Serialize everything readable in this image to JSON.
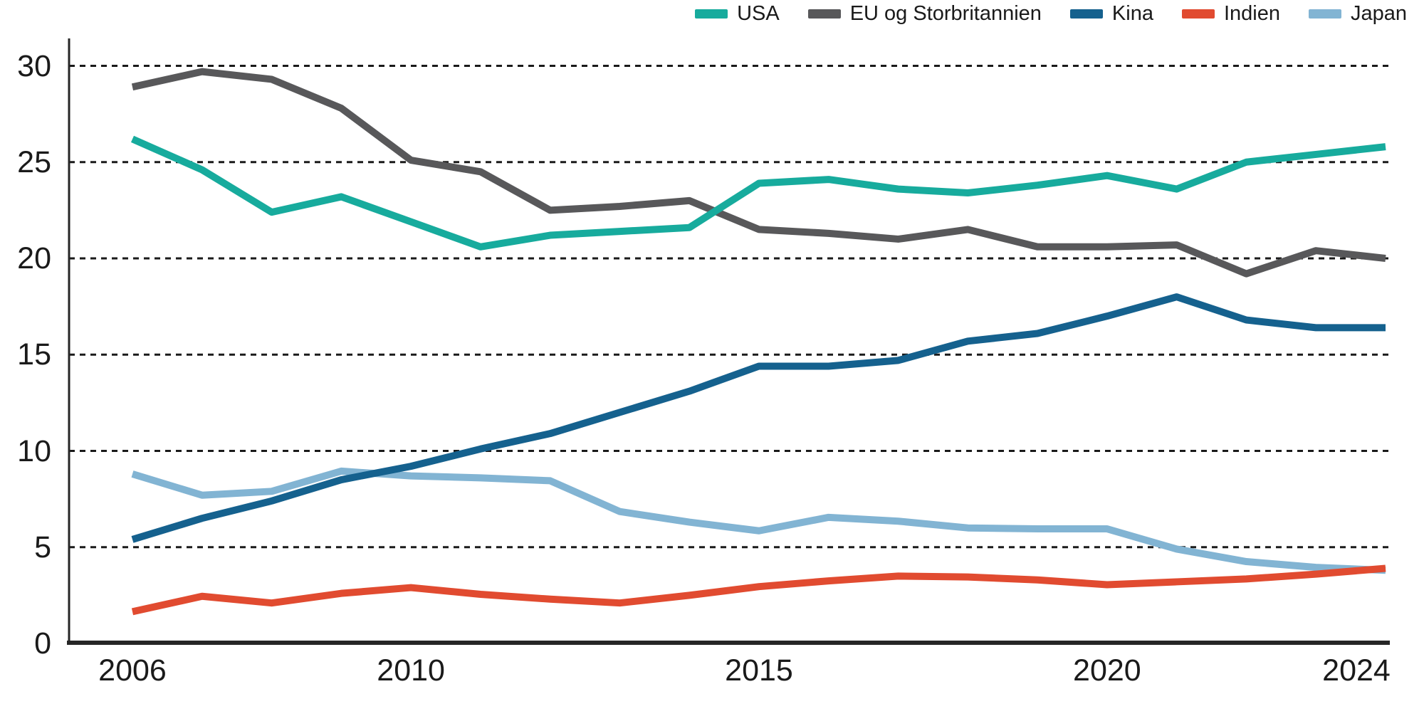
{
  "chart_data": {
    "type": "line",
    "x": [
      2006,
      2007,
      2008,
      2009,
      2010,
      2011,
      2012,
      2013,
      2014,
      2015,
      2016,
      2017,
      2018,
      2019,
      2020,
      2021,
      2022,
      2023,
      2024
    ],
    "x_tick_labels": [
      2006,
      2010,
      2015,
      2020,
      2024
    ],
    "y_ticks": [
      0,
      5,
      10,
      15,
      20,
      25,
      30
    ],
    "ylim": [
      0,
      30
    ],
    "grid": "horizontal-dashed",
    "legend_position": "top-right",
    "series": [
      {
        "name": "USA",
        "color": "#17ab9d",
        "values": [
          26.2,
          24.6,
          22.4,
          23.2,
          21.9,
          20.6,
          21.2,
          21.4,
          21.6,
          23.9,
          24.1,
          23.6,
          23.4,
          23.8,
          24.3,
          23.6,
          25.0,
          25.4,
          25.8
        ]
      },
      {
        "name": "EU og Storbritannien",
        "color": "#58585a",
        "values": [
          28.9,
          29.7,
          29.3,
          27.8,
          25.1,
          24.5,
          22.5,
          22.7,
          23.0,
          21.5,
          21.3,
          21.0,
          21.5,
          20.6,
          20.6,
          20.7,
          19.2,
          20.4,
          20.0
        ]
      },
      {
        "name": "Kina",
        "color": "#15618e",
        "values": [
          5.4,
          6.5,
          7.4,
          8.5,
          9.2,
          10.1,
          10.9,
          12.0,
          13.1,
          14.4,
          14.4,
          14.7,
          15.7,
          16.1,
          17.0,
          18.0,
          16.8,
          16.4,
          16.4
        ]
      },
      {
        "name": "Indien",
        "color": "#e14b30",
        "values": [
          1.65,
          2.45,
          2.1,
          2.6,
          2.9,
          2.55,
          2.3,
          2.1,
          2.5,
          2.95,
          3.25,
          3.5,
          3.45,
          3.3,
          3.05,
          3.2,
          3.35,
          3.6,
          3.9
        ]
      },
      {
        "name": "Japan",
        "color": "#82b4d3",
        "values": [
          8.8,
          7.7,
          7.9,
          8.95,
          8.7,
          8.6,
          8.45,
          6.85,
          6.3,
          5.85,
          6.55,
          6.35,
          6.0,
          5.95,
          5.95,
          4.9,
          4.25,
          3.95,
          3.8
        ]
      }
    ],
    "draw_order": [
      "Japan",
      "EU og Storbritannien",
      "Kina",
      "Indien",
      "USA"
    ]
  },
  "style": {
    "axis_color": "#262626",
    "grid_color": "#1a1a1a",
    "text_color": "#1a1a1a"
  }
}
